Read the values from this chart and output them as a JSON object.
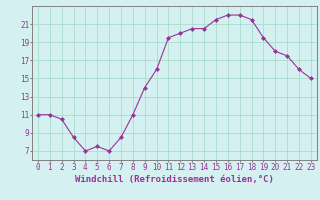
{
  "x": [
    0,
    1,
    2,
    3,
    4,
    5,
    6,
    7,
    8,
    9,
    10,
    11,
    12,
    13,
    14,
    15,
    16,
    17,
    18,
    19,
    20,
    21,
    22,
    23
  ],
  "y": [
    11,
    11,
    10.5,
    8.5,
    7,
    7.5,
    7,
    8.5,
    11,
    14,
    16,
    19.5,
    20,
    20.5,
    20.5,
    21.5,
    22,
    22,
    21.5,
    19.5,
    18,
    17.5,
    16,
    15
  ],
  "line_color": "#993399",
  "marker_color": "#993399",
  "bg_color": "#d4f0f0",
  "grid_color": "#aaddcc",
  "xlabel": "Windchill (Refroidissement éolien,°C)",
  "xtick_labels": [
    "0",
    "1",
    "2",
    "3",
    "4",
    "5",
    "6",
    "7",
    "8",
    "9",
    "10",
    "11",
    "12",
    "13",
    "14",
    "15",
    "16",
    "17",
    "18",
    "19",
    "20",
    "21",
    "22",
    "23"
  ],
  "ytick_labels": [
    "7",
    "9",
    "11",
    "13",
    "15",
    "17",
    "19",
    "21"
  ],
  "yticks": [
    7,
    9,
    11,
    13,
    15,
    17,
    19,
    21
  ],
  "xlim": [
    -0.5,
    23.5
  ],
  "ylim": [
    6.0,
    23.0
  ],
  "tick_color": "#993399",
  "tick_fontsize": 5.5,
  "xlabel_fontsize": 6.5,
  "spine_color": "#808080"
}
